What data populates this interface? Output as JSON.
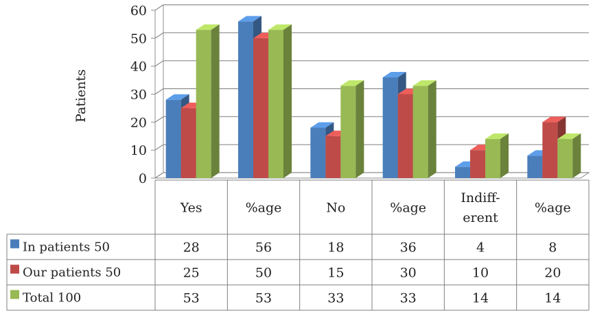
{
  "chart_data": {
    "type": "bar",
    "ylabel": "Patients",
    "ylim": [
      0,
      60
    ],
    "yticks": [
      "0",
      "10",
      "20",
      "30",
      "40",
      "50",
      "60"
    ],
    "categories": [
      {
        "lines": [
          "Yes"
        ]
      },
      {
        "lines": [
          "%age"
        ]
      },
      {
        "lines": [
          "No"
        ]
      },
      {
        "lines": [
          "%age"
        ]
      },
      {
        "lines": [
          "Indiff-",
          "erent"
        ]
      },
      {
        "lines": [
          "%age"
        ]
      }
    ],
    "series": [
      {
        "name": "In patients 50",
        "color": "#4a7ebb",
        "values": [
          28,
          56,
          18,
          36,
          4,
          8
        ]
      },
      {
        "name": "Our patients 50",
        "color": "#be4b48",
        "values": [
          25,
          50,
          15,
          30,
          10,
          20
        ]
      },
      {
        "name": "Total 100",
        "color": "#98b954",
        "values": [
          53,
          53,
          33,
          33,
          14,
          14
        ]
      }
    ],
    "grid": true,
    "legend": "data-table"
  }
}
